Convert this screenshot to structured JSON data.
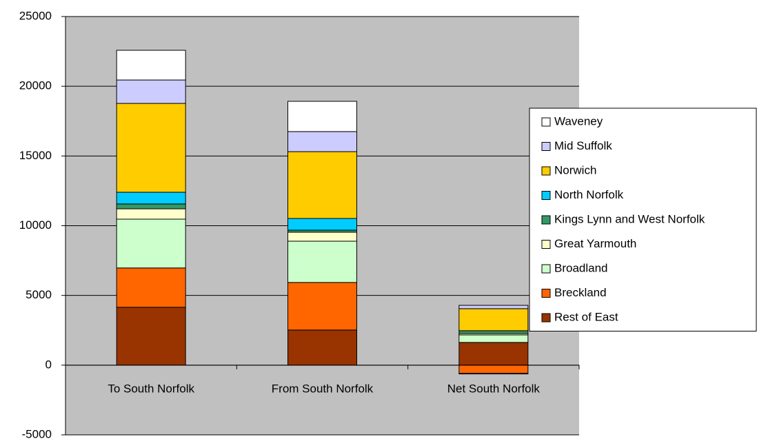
{
  "chart_data": {
    "type": "stacked_bar",
    "categories": [
      "To South Norfolk",
      "From South Norfolk",
      "Net South Norfolk"
    ],
    "series": [
      {
        "name": "Rest of East",
        "color": "#993300",
        "values": [
          4150,
          2520,
          1630
        ]
      },
      {
        "name": "Breckland",
        "color": "#ff6600",
        "values": [
          2820,
          3410,
          -590
        ]
      },
      {
        "name": "Broadland",
        "color": "#ccffcc",
        "values": [
          3500,
          2960,
          540
        ]
      },
      {
        "name": "Great Yarmouth",
        "color": "#ffffcc",
        "values": [
          740,
          640,
          100
        ]
      },
      {
        "name": "Kings Lynn and West Norfolk",
        "color": "#339966",
        "values": [
          350,
          150,
          200
        ]
      },
      {
        "name": "North Norfolk",
        "color": "#00ccff",
        "values": [
          840,
          840,
          0
        ]
      },
      {
        "name": "Norwich",
        "color": "#ffcc00",
        "values": [
          6370,
          4790,
          1580
        ]
      },
      {
        "name": "Mid Suffolk",
        "color": "#ccccff",
        "values": [
          1680,
          1440,
          240
        ]
      },
      {
        "name": "Waveney",
        "color": "#ffffff",
        "values": [
          2130,
          2170,
          -40
        ]
      }
    ],
    "ylim": [
      -5000,
      25000
    ],
    "yticks": [
      -5000,
      0,
      5000,
      10000,
      15000,
      20000,
      25000
    ],
    "grid": true,
    "legend": "right"
  }
}
